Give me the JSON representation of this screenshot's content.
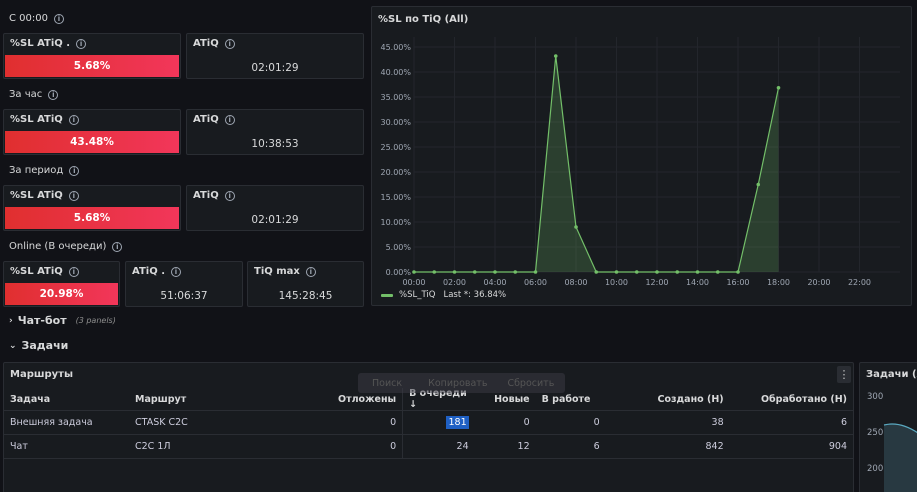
{
  "sections": {
    "since_midnight": "С 00:00",
    "per_hour": "За час",
    "per_period": "За период",
    "online": "Online (В очереди)"
  },
  "stats": {
    "row1": {
      "sl_title": "%SL ATiQ .",
      "sl_value": "5.68%",
      "atiq_title": "ATiQ",
      "atiq_value": "02:01:29"
    },
    "row2": {
      "sl_title": "%SL ATiQ",
      "sl_value": "43.48%",
      "atiq_title": "ATiQ",
      "atiq_value": "10:38:53"
    },
    "row3": {
      "sl_title": "%SL ATiQ",
      "sl_value": "5.68%",
      "atiq_title": "ATiQ",
      "atiq_value": "02:01:29"
    },
    "row4": {
      "sl_title": "%SL ATiQ",
      "sl_value": "20.98%",
      "atiq_title": "ATiQ .",
      "atiq_value": "51:06:37",
      "tiq_title": "TiQ max",
      "tiq_value": "145:28:45"
    }
  },
  "chart_panel": {
    "title": "%SL по TiQ (All)",
    "legend_label": "%SL_TiQ",
    "legend_last": "Last *: 36.84%"
  },
  "chart_data": {
    "type": "line",
    "title": "%SL по TiQ (All)",
    "y_ticks": [
      "0.00%",
      "5.00%",
      "10.00%",
      "15.00%",
      "20.00%",
      "25.00%",
      "30.00%",
      "35.00%",
      "40.00%",
      "45.00%"
    ],
    "x_ticks": [
      "00:00",
      "02:00",
      "04:00",
      "06:00",
      "08:00",
      "10:00",
      "12:00",
      "14:00",
      "16:00",
      "18:00",
      "20:00",
      "22:00"
    ],
    "ylim": [
      0,
      47
    ],
    "xlim": [
      0,
      24
    ],
    "series": [
      {
        "name": "%SL_TiQ",
        "color": "#73bf69",
        "x": [
          0,
          1,
          2,
          3,
          4,
          5,
          6,
          7,
          8,
          9,
          10,
          11,
          12,
          13,
          14,
          15,
          16,
          17,
          18
        ],
        "y": [
          0,
          0,
          0,
          0,
          0,
          0,
          0,
          43.2,
          9,
          0,
          0,
          0,
          0,
          0,
          0,
          0,
          0,
          17.5,
          36.84
        ]
      }
    ]
  },
  "rows": {
    "chatbot": "Чат-бот",
    "chatbot_sub": "(3 panels)",
    "tasks": "Задачи"
  },
  "routes_panel": {
    "title": "Маршруты",
    "menu_icon": "⋮",
    "ghost_search": "Поиск",
    "ghost_copy": "Копировать",
    "ghost_reset": "Сбросить",
    "columns": [
      "Задача",
      "Маршрут",
      "Отложены",
      "В очереди",
      "Новые",
      "В работе",
      "Создано (Н)",
      "Обработано (Н)"
    ],
    "sort_arrow": "↓",
    "data": [
      [
        "Внешняя задача",
        "CTASK C2C",
        "0",
        "181",
        "0",
        "0",
        "38",
        "6"
      ],
      [
        "Чат",
        "C2C 1Л",
        "0",
        "24",
        "12",
        "6",
        "842",
        "904"
      ]
    ]
  },
  "tasks_panel": {
    "title": "Задачи (All",
    "y_ticks": [
      "300",
      "250",
      "200"
    ]
  }
}
